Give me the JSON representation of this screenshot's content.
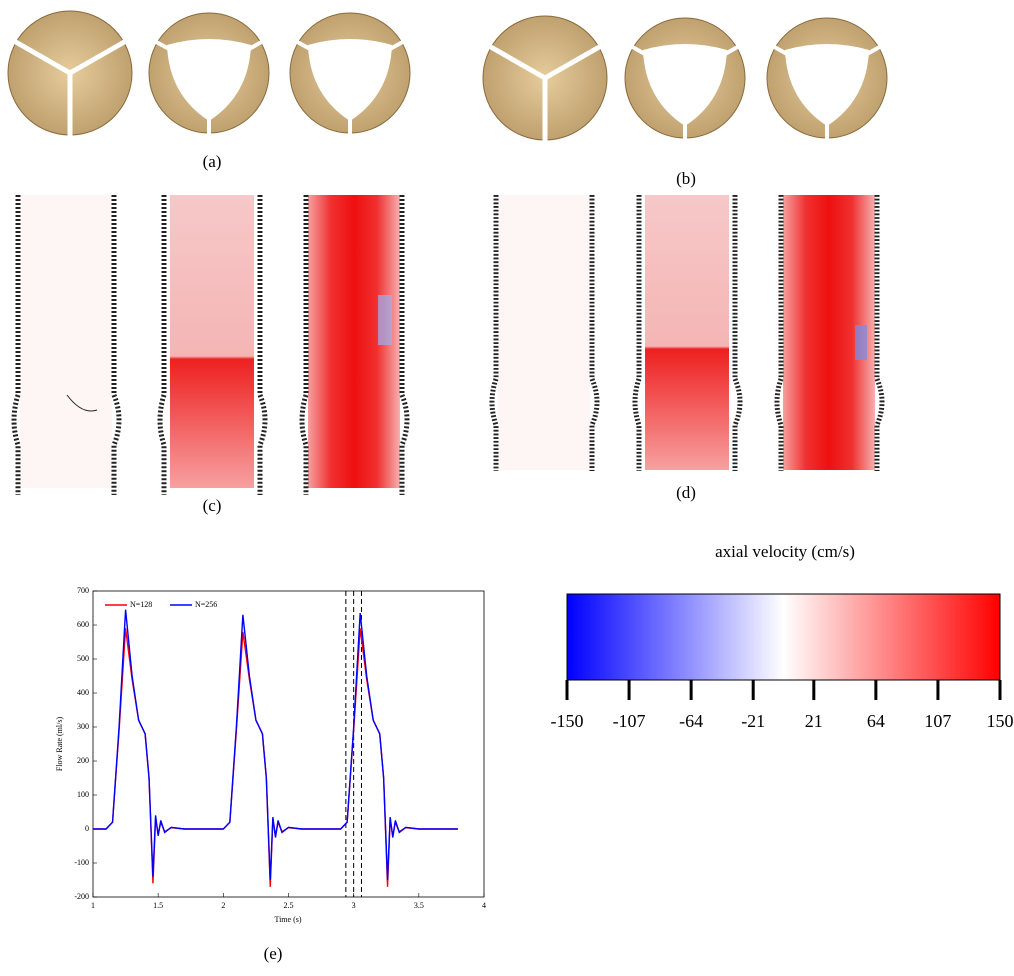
{
  "panels": [
    "(a)",
    "(b)",
    "(c)",
    "(d)",
    "(e)"
  ],
  "chart_data": [
    {
      "type": "line",
      "xlabel": "Time (s)",
      "ylabel": "Flow Rate (ml/s)",
      "x": [
        1.0,
        1.1,
        1.15,
        1.2,
        1.25,
        1.3,
        1.35,
        1.4,
        1.43,
        1.46,
        1.48,
        1.5,
        1.52,
        1.55,
        1.6,
        1.7,
        2.0,
        2.05,
        2.1,
        2.15,
        2.2,
        2.25,
        2.3,
        2.33,
        2.36,
        2.38,
        2.4,
        2.42,
        2.45,
        2.5,
        2.6,
        2.9,
        2.95,
        3.0,
        3.05,
        3.1,
        3.15,
        3.2,
        3.23,
        3.26,
        3.28,
        3.3,
        3.32,
        3.35,
        3.4,
        3.5,
        3.8
      ],
      "series": [
        {
          "name": "N=128",
          "color": "#ff0000",
          "values": [
            0,
            0,
            20,
            290,
            590,
            440,
            320,
            280,
            150,
            -160,
            30,
            -15,
            20,
            -8,
            4,
            0,
            0,
            20,
            290,
            580,
            440,
            320,
            280,
            150,
            -170,
            30,
            -20,
            20,
            -8,
            4,
            0,
            0,
            20,
            290,
            590,
            440,
            320,
            280,
            150,
            -170,
            30,
            -20,
            20,
            -8,
            4,
            0,
            0
          ]
        },
        {
          "name": "N=256",
          "color": "#0000ff",
          "values": [
            0,
            0,
            20,
            300,
            645,
            450,
            320,
            280,
            150,
            -140,
            40,
            -20,
            25,
            -10,
            5,
            0,
            0,
            20,
            300,
            630,
            450,
            320,
            280,
            150,
            -150,
            35,
            -25,
            25,
            -10,
            5,
            0,
            0,
            20,
            300,
            635,
            450,
            320,
            280,
            150,
            -150,
            35,
            -25,
            25,
            -10,
            5,
            0,
            0
          ]
        }
      ],
      "vlines": [
        2.94,
        3.0,
        3.06
      ],
      "xlim": [
        1,
        4
      ],
      "xticks": [
        1,
        1.5,
        2,
        2.5,
        3,
        3.5,
        4
      ],
      "ylim": [
        -200,
        700
      ],
      "yticks": [
        -200,
        -100,
        0,
        100,
        200,
        300,
        400,
        500,
        600,
        700
      ],
      "legend": "top-left"
    },
    {
      "type": "colorbar",
      "title": "axial velocity (cm/s)",
      "colors": [
        "#0000ff",
        "#ffffff",
        "#ff0000"
      ],
      "lim": [
        -150,
        150
      ],
      "ticks": [
        -150,
        -107,
        -64,
        -21,
        21,
        64,
        107,
        150
      ]
    }
  ]
}
